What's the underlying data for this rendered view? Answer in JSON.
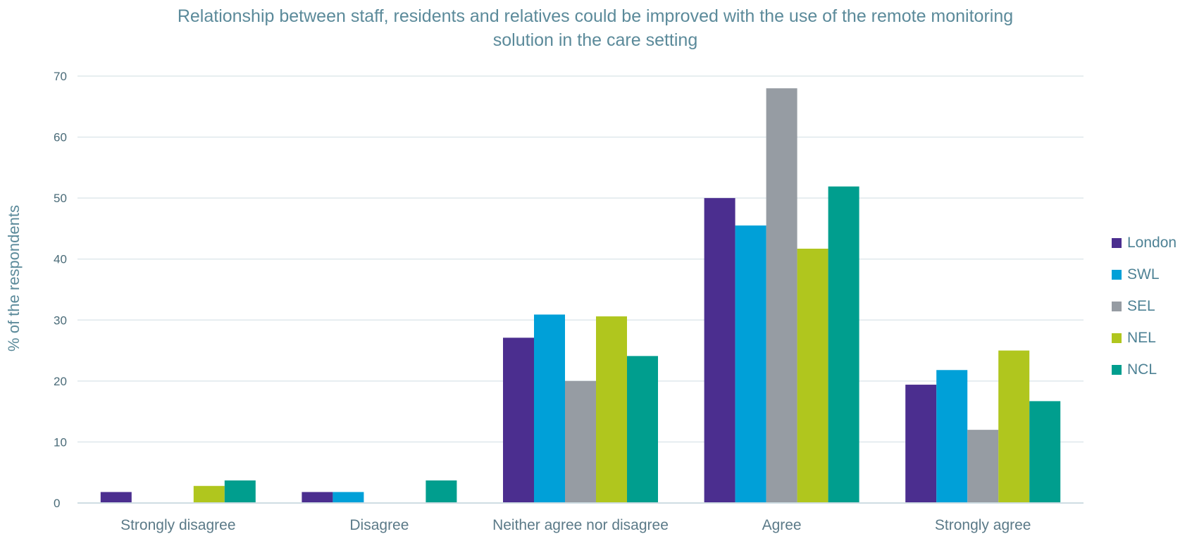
{
  "chart_data": {
    "type": "bar",
    "title": "Relationship between staff, residents and relatives could be improved with the use of the remote monitoring solution in the care setting",
    "title_lines": [
      "Relationship between staff, residents and relatives could be improved with the use of the remote monitoring",
      "solution in the care setting"
    ],
    "xlabel": "",
    "ylabel": "% of the respondents",
    "ylim": [
      0,
      70
    ],
    "yticks": [
      0,
      10,
      20,
      30,
      40,
      50,
      60,
      70
    ],
    "grid": true,
    "legend_position": "right",
    "categories": [
      "Strongly disagree",
      "Disagree",
      "Neither agree nor disagree",
      "Agree",
      "Strongly agree"
    ],
    "series": [
      {
        "name": "London",
        "color": "#4b2e8f",
        "values": [
          1.8,
          1.8,
          27.1,
          50.0,
          19.4
        ]
      },
      {
        "name": "SWL",
        "color": "#00a0d8",
        "values": [
          0,
          1.8,
          30.9,
          45.5,
          21.8
        ]
      },
      {
        "name": "SEL",
        "color": "#969ca3",
        "values": [
          0,
          0,
          20.0,
          68.0,
          12.0
        ]
      },
      {
        "name": "NEL",
        "color": "#b0c61e",
        "values": [
          2.8,
          0,
          30.6,
          41.7,
          25.0
        ]
      },
      {
        "name": "NCL",
        "color": "#009e8e",
        "values": [
          3.7,
          3.7,
          24.1,
          51.9,
          16.7
        ]
      }
    ]
  }
}
